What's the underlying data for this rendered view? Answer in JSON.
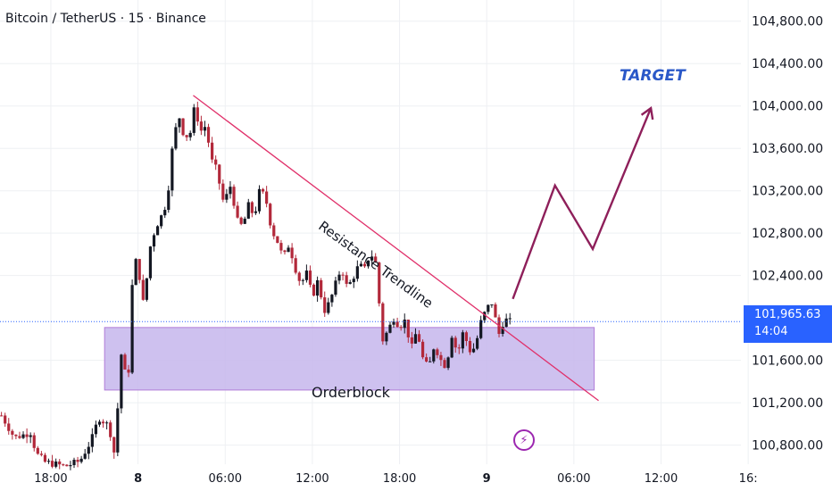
{
  "header": {
    "title": "Bitcoin / TetherUS · 15 · Binance"
  },
  "last_price": {
    "price": "101,965.63",
    "countdown": "14:04",
    "value": 101965.63,
    "color": "#2962ff"
  },
  "annotations": {
    "target_label": "TARGET",
    "trendline_label": "Resistance Trendline",
    "orderblock_label": "Orderblock",
    "orderblock_range": [
      101320,
      101910
    ],
    "trendline_color": "#e0306a",
    "projection_color": "#8e1f5a",
    "orderblock_color": "#c5b6ec",
    "event_icon": "lightning-bolt-icon"
  },
  "chart_data": {
    "type": "candlestick",
    "symbol": "Bitcoin / TetherUS",
    "interval": "15",
    "exchange": "Binance",
    "ylim": [
      100620,
      105000
    ],
    "y_ticks": [
      "104,800.00",
      "104,400.00",
      "104,000.00",
      "103,600.00",
      "103,200.00",
      "102,800.00",
      "102,400.00",
      "101,600.00",
      "101,200.00",
      "100,800.00"
    ],
    "y_tick_values": [
      104800,
      104400,
      104000,
      103600,
      103200,
      102800,
      102400,
      101600,
      101200,
      100800
    ],
    "x_ticks": [
      "18:00",
      "8",
      "06:00",
      "12:00",
      "18:00",
      "9",
      "06:00",
      "12:00",
      "16:"
    ],
    "x_tick_hours": [
      18,
      24,
      30,
      36,
      42,
      48,
      54,
      60,
      66
    ],
    "x_tick_bold": [
      false,
      true,
      false,
      false,
      false,
      true,
      false,
      false,
      false
    ],
    "x_range_hours": [
      14.5,
      65.5
    ],
    "up_color": "#131722",
    "down_color": "#b2283a",
    "close_path": [
      [
        14.6,
        101080
      ],
      [
        15.5,
        100870
      ],
      [
        16.6,
        100920
      ],
      [
        17.0,
        100720
      ],
      [
        17.6,
        100640
      ],
      [
        19.0,
        100600
      ],
      [
        20.0,
        100650
      ],
      [
        20.8,
        100850
      ],
      [
        21.3,
        101060
      ],
      [
        22.0,
        100980
      ],
      [
        22.4,
        100700
      ],
      [
        22.6,
        101150
      ],
      [
        22.8,
        101690
      ],
      [
        23.3,
        101350
      ],
      [
        23.6,
        102300
      ],
      [
        23.9,
        102580
      ],
      [
        24.4,
        102100
      ],
      [
        24.8,
        102650
      ],
      [
        25.2,
        102850
      ],
      [
        25.6,
        102960
      ],
      [
        26.0,
        103100
      ],
      [
        26.4,
        103650
      ],
      [
        26.8,
        103920
      ],
      [
        27.2,
        103700
      ],
      [
        27.6,
        103750
      ],
      [
        27.9,
        104000
      ],
      [
        28.3,
        103760
      ],
      [
        28.7,
        103820
      ],
      [
        29.0,
        103500
      ],
      [
        29.4,
        103400
      ],
      [
        29.9,
        103080
      ],
      [
        30.4,
        103260
      ],
      [
        30.8,
        102920
      ],
      [
        31.2,
        102860
      ],
      [
        31.6,
        103060
      ],
      [
        32.0,
        102960
      ],
      [
        32.4,
        103220
      ],
      [
        32.8,
        103120
      ],
      [
        33.2,
        102830
      ],
      [
        33.6,
        102720
      ],
      [
        34.0,
        102560
      ],
      [
        34.4,
        102700
      ],
      [
        34.8,
        102480
      ],
      [
        35.2,
        102320
      ],
      [
        35.6,
        102420
      ],
      [
        36.0,
        102200
      ],
      [
        36.4,
        102360
      ],
      [
        36.8,
        102060
      ],
      [
        37.2,
        102150
      ],
      [
        37.6,
        102320
      ],
      [
        38.0,
        102480
      ],
      [
        38.4,
        102280
      ],
      [
        38.8,
        102380
      ],
      [
        39.2,
        102500
      ],
      [
        39.6,
        102460
      ],
      [
        40.0,
        102620
      ],
      [
        40.4,
        102500
      ],
      [
        40.8,
        101780
      ],
      [
        41.2,
        101880
      ],
      [
        41.6,
        102000
      ],
      [
        42.0,
        101920
      ],
      [
        42.4,
        101980
      ],
      [
        42.8,
        101700
      ],
      [
        43.2,
        101890
      ],
      [
        43.6,
        101620
      ],
      [
        44.0,
        101520
      ],
      [
        44.4,
        101750
      ],
      [
        44.8,
        101610
      ],
      [
        45.2,
        101540
      ],
      [
        45.6,
        101840
      ],
      [
        46.0,
        101660
      ],
      [
        46.4,
        101880
      ],
      [
        46.8,
        101690
      ],
      [
        47.2,
        101720
      ],
      [
        47.6,
        101960
      ],
      [
        48.0,
        102090
      ],
      [
        48.4,
        102150
      ],
      [
        48.8,
        101830
      ],
      [
        49.2,
        101990
      ],
      [
        49.6,
        101965
      ]
    ],
    "projection_path": [
      [
        49.8,
        102180
      ],
      [
        52.7,
        103250
      ],
      [
        55.3,
        102650
      ],
      [
        59.3,
        103980
      ]
    ],
    "trendline": [
      [
        27.8,
        104100
      ],
      [
        55.7,
        101220
      ]
    ],
    "orderblock_hours": [
      21.7,
      55.4
    ]
  }
}
